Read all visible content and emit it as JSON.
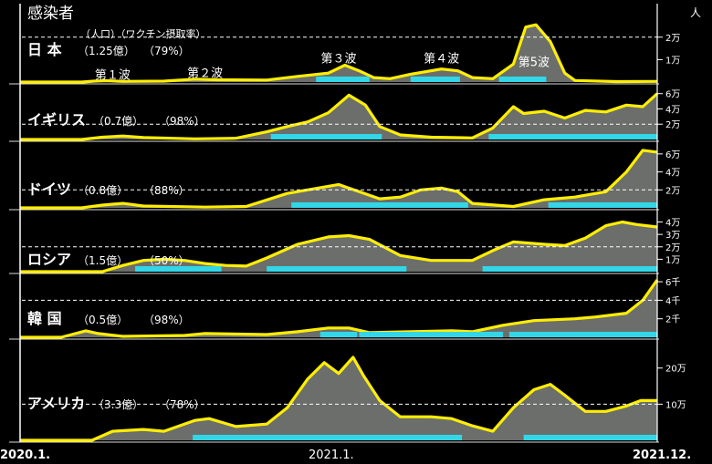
{
  "chart_data": {
    "type": "area",
    "title": "感染者",
    "unit_label": "人",
    "x_start_label": "2020.1.",
    "x_mid_label": "2021.1.",
    "x_end_label": "2021.12.",
    "x_range": [
      0,
      23
    ],
    "colors": {
      "line": "#ffee00",
      "fill": "#6b6e6b",
      "vaccine_bar": "#33d6e6",
      "dashed": "#ffffff",
      "background": "#000000"
    },
    "panels": [
      {
        "name": "日 本",
        "population": "（1.25億）",
        "vaccine_rate": "（79%）",
        "header_note": "（人口）（ワクチン摂取率）",
        "ymax": 26000,
        "ticks": [
          {
            "v": 10000,
            "label": "1万"
          },
          {
            "v": 20000,
            "label": "2万"
          }
        ],
        "dashed": 20000,
        "bars": [
          [
            14.4,
            17.0
          ],
          [
            19.0,
            21.4
          ],
          [
            23.3,
            25.6
          ]
        ],
        "wave_labels": [
          {
            "x": 4.5,
            "y": 600,
            "text": "第１波"
          },
          {
            "x": 9.0,
            "y": 1500,
            "text": "第２波"
          },
          {
            "x": 15.5,
            "y": 8000,
            "text": "第３波"
          },
          {
            "x": 20.5,
            "y": 8000,
            "text": "第４波"
          },
          {
            "x": 25.0,
            "y": 6200,
            "text": "第5波"
          }
        ],
        "series": [
          [
            0,
            0
          ],
          [
            3,
            0
          ],
          [
            3.6,
            400
          ],
          [
            4.2,
            600
          ],
          [
            5,
            300
          ],
          [
            7,
            400
          ],
          [
            8.5,
            1300
          ],
          [
            9.5,
            1000
          ],
          [
            12,
            900
          ],
          [
            13.5,
            2500
          ],
          [
            15,
            4000
          ],
          [
            15.8,
            7500
          ],
          [
            16.5,
            5000
          ],
          [
            17.2,
            2000
          ],
          [
            18,
            1500
          ],
          [
            19,
            3500
          ],
          [
            20.5,
            5800
          ],
          [
            21.3,
            5000
          ],
          [
            22,
            2000
          ],
          [
            23,
            1500
          ],
          [
            24,
            8000
          ],
          [
            24.6,
            24500
          ],
          [
            25.1,
            25500
          ],
          [
            25.8,
            18000
          ],
          [
            26.5,
            4000
          ],
          [
            27,
            700
          ],
          [
            29,
            200
          ],
          [
            31,
            300
          ]
        ]
      },
      {
        "name": "イギリス",
        "population": "（0.7億）",
        "vaccine_rate": "（98%）",
        "ymax": 68000,
        "ticks": [
          {
            "v": 20000,
            "label": "2万"
          },
          {
            "v": 40000,
            "label": "4万"
          },
          {
            "v": 60000,
            "label": "6万"
          }
        ],
        "dashed": 20000,
        "bars": [
          [
            12.2,
            17.6
          ],
          [
            22.8,
            31
          ]
        ],
        "series": [
          [
            0,
            0
          ],
          [
            3,
            0
          ],
          [
            4,
            3000
          ],
          [
            5,
            4500
          ],
          [
            6,
            2500
          ],
          [
            8.5,
            800
          ],
          [
            10.5,
            1500
          ],
          [
            12,
            10000
          ],
          [
            13,
            17000
          ],
          [
            14,
            23000
          ],
          [
            15,
            35000
          ],
          [
            16,
            58000
          ],
          [
            16.8,
            45000
          ],
          [
            17.5,
            17000
          ],
          [
            18.5,
            6000
          ],
          [
            20,
            3000
          ],
          [
            22,
            2000
          ],
          [
            23,
            15000
          ],
          [
            24,
            43000
          ],
          [
            24.5,
            34000
          ],
          [
            25.5,
            37000
          ],
          [
            26.5,
            28000
          ],
          [
            27.5,
            38000
          ],
          [
            28.5,
            36000
          ],
          [
            29.5,
            45000
          ],
          [
            30.3,
            43000
          ],
          [
            31,
            60000
          ]
        ]
      },
      {
        "name": "ドイツ",
        "population": "（0.8億）",
        "vaccine_rate": "（88%）",
        "ymax": 70000,
        "ticks": [
          {
            "v": 20000,
            "label": "2万"
          },
          {
            "v": 40000,
            "label": "4万"
          },
          {
            "v": 60000,
            "label": "6万"
          }
        ],
        "dashed": 20000,
        "bars": [
          [
            13.2,
            21.8
          ],
          [
            25.7,
            31
          ]
        ],
        "series": [
          [
            0,
            0
          ],
          [
            3,
            0
          ],
          [
            4,
            3000
          ],
          [
            5,
            5000
          ],
          [
            6,
            2000
          ],
          [
            9,
            800
          ],
          [
            11,
            1500
          ],
          [
            13,
            16000
          ],
          [
            14.5,
            22000
          ],
          [
            15.5,
            26000
          ],
          [
            16.5,
            18000
          ],
          [
            17.5,
            10000
          ],
          [
            18.5,
            12000
          ],
          [
            19.5,
            20000
          ],
          [
            20.5,
            22000
          ],
          [
            21.3,
            18000
          ],
          [
            22,
            5000
          ],
          [
            24,
            1500
          ],
          [
            25.5,
            9000
          ],
          [
            27,
            12000
          ],
          [
            28.5,
            18000
          ],
          [
            29.5,
            40000
          ],
          [
            30.3,
            64000
          ],
          [
            31,
            62000
          ]
        ]
      },
      {
        "name": "ロシア",
        "population": "（1.5億）",
        "vaccine_rate": "（50%）",
        "ymax": 47000,
        "ticks": [
          {
            "v": 10000,
            "label": "1万"
          },
          {
            "v": 20000,
            "label": "2万"
          },
          {
            "v": 30000,
            "label": "3万"
          },
          {
            "v": 40000,
            "label": "4万"
          }
        ],
        "dashed": 20000,
        "bars": [
          [
            5.6,
            9.8
          ],
          [
            12.0,
            18.8
          ],
          [
            22.5,
            31
          ]
        ],
        "series": [
          [
            0,
            0
          ],
          [
            4,
            0
          ],
          [
            5,
            5000
          ],
          [
            6,
            9000
          ],
          [
            7,
            10000
          ],
          [
            8,
            9000
          ],
          [
            9,
            6500
          ],
          [
            10,
            5000
          ],
          [
            11,
            4500
          ],
          [
            12,
            11000
          ],
          [
            13.5,
            22000
          ],
          [
            15,
            28000
          ],
          [
            16,
            29000
          ],
          [
            17,
            26000
          ],
          [
            18.5,
            13000
          ],
          [
            20,
            9000
          ],
          [
            22,
            9000
          ],
          [
            23,
            17000
          ],
          [
            24,
            24000
          ],
          [
            25.5,
            22000
          ],
          [
            26.5,
            21000
          ],
          [
            27.5,
            27000
          ],
          [
            28.5,
            37000
          ],
          [
            29.3,
            40000
          ],
          [
            30,
            38000
          ],
          [
            31,
            36000
          ]
        ]
      },
      {
        "name": "韓 国",
        "population": "（0.5億）",
        "vaccine_rate": "（98%）",
        "ymax": 6500,
        "ticks": [
          {
            "v": 2000,
            "label": "2千"
          },
          {
            "v": 4000,
            "label": "4千"
          },
          {
            "v": 6000,
            "label": "6千"
          }
        ],
        "dashed": 4000,
        "bars": [
          [
            14.6,
            16.4
          ],
          [
            16.5,
            23.5
          ],
          [
            23.8,
            31
          ]
        ],
        "series": [
          [
            0,
            0
          ],
          [
            2,
            0
          ],
          [
            3.2,
            700
          ],
          [
            3.8,
            400
          ],
          [
            5,
            100
          ],
          [
            8,
            200
          ],
          [
            9,
            400
          ],
          [
            12,
            300
          ],
          [
            13.5,
            600
          ],
          [
            15,
            1000
          ],
          [
            16,
            1000
          ],
          [
            17,
            500
          ],
          [
            19,
            600
          ],
          [
            21,
            700
          ],
          [
            22,
            600
          ],
          [
            23.5,
            1300
          ],
          [
            25,
            1800
          ],
          [
            27,
            2000
          ],
          [
            28,
            2200
          ],
          [
            29.5,
            2600
          ],
          [
            30.3,
            4000
          ],
          [
            31,
            6200
          ]
        ]
      },
      {
        "name": "アメリカ",
        "population": "（3.3億）",
        "vaccine_rate": "（78%）",
        "ymax": 270000,
        "ticks": [
          {
            "v": 100000,
            "label": "10万"
          },
          {
            "v": 200000,
            "label": "20万"
          }
        ],
        "dashed": 100000,
        "bars": [
          [
            8.4,
            21.5
          ],
          [
            24.5,
            31
          ]
        ],
        "series": [
          [
            0,
            0
          ],
          [
            3.5,
            0
          ],
          [
            4.5,
            25000
          ],
          [
            6,
            30000
          ],
          [
            7,
            25000
          ],
          [
            8.5,
            55000
          ],
          [
            9.2,
            60000
          ],
          [
            10.5,
            38000
          ],
          [
            12,
            45000
          ],
          [
            13,
            90000
          ],
          [
            14,
            170000
          ],
          [
            14.8,
            215000
          ],
          [
            15.5,
            185000
          ],
          [
            16.2,
            230000
          ],
          [
            16.7,
            180000
          ],
          [
            17.5,
            110000
          ],
          [
            18.5,
            65000
          ],
          [
            20,
            65000
          ],
          [
            21,
            60000
          ],
          [
            22,
            40000
          ],
          [
            23,
            25000
          ],
          [
            24,
            90000
          ],
          [
            25,
            140000
          ],
          [
            25.8,
            155000
          ],
          [
            26.5,
            125000
          ],
          [
            27.5,
            80000
          ],
          [
            28.5,
            80000
          ],
          [
            29.5,
            95000
          ],
          [
            30.2,
            110000
          ],
          [
            31,
            110000
          ]
        ]
      }
    ]
  }
}
